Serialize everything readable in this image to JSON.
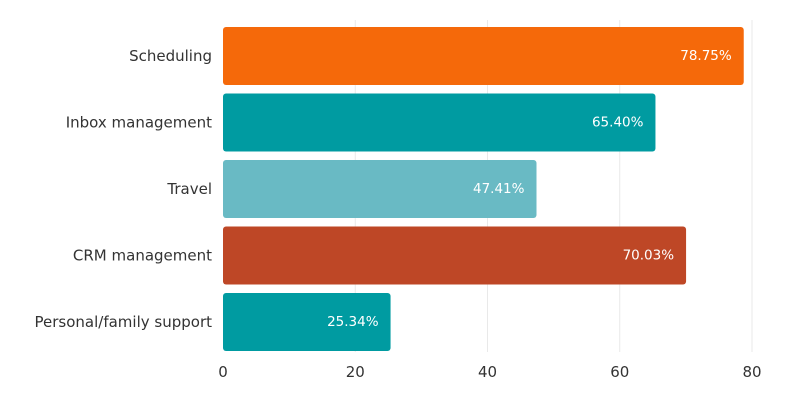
{
  "chart_data": {
    "type": "bar",
    "orientation": "horizontal",
    "categories": [
      "Scheduling",
      "Inbox management",
      "Travel",
      "CRM management",
      "Personal/family support"
    ],
    "values": [
      78.75,
      65.4,
      47.41,
      70.03,
      25.34
    ],
    "data_labels": [
      "78.75%",
      "65.40%",
      "47.41%",
      "70.03%",
      "25.34%"
    ],
    "bar_colors": [
      "#F5690A",
      "#009BA1",
      "#69BAC4",
      "#BE4726",
      "#009BA1"
    ],
    "xlim": [
      0,
      80
    ],
    "xticks": [
      0,
      20,
      40,
      60,
      80
    ],
    "xtick_labels": [
      "0",
      "20",
      "40",
      "60",
      "80"
    ],
    "title": "",
    "xlabel": "",
    "ylabel": "",
    "grid": true,
    "legend": "none"
  }
}
